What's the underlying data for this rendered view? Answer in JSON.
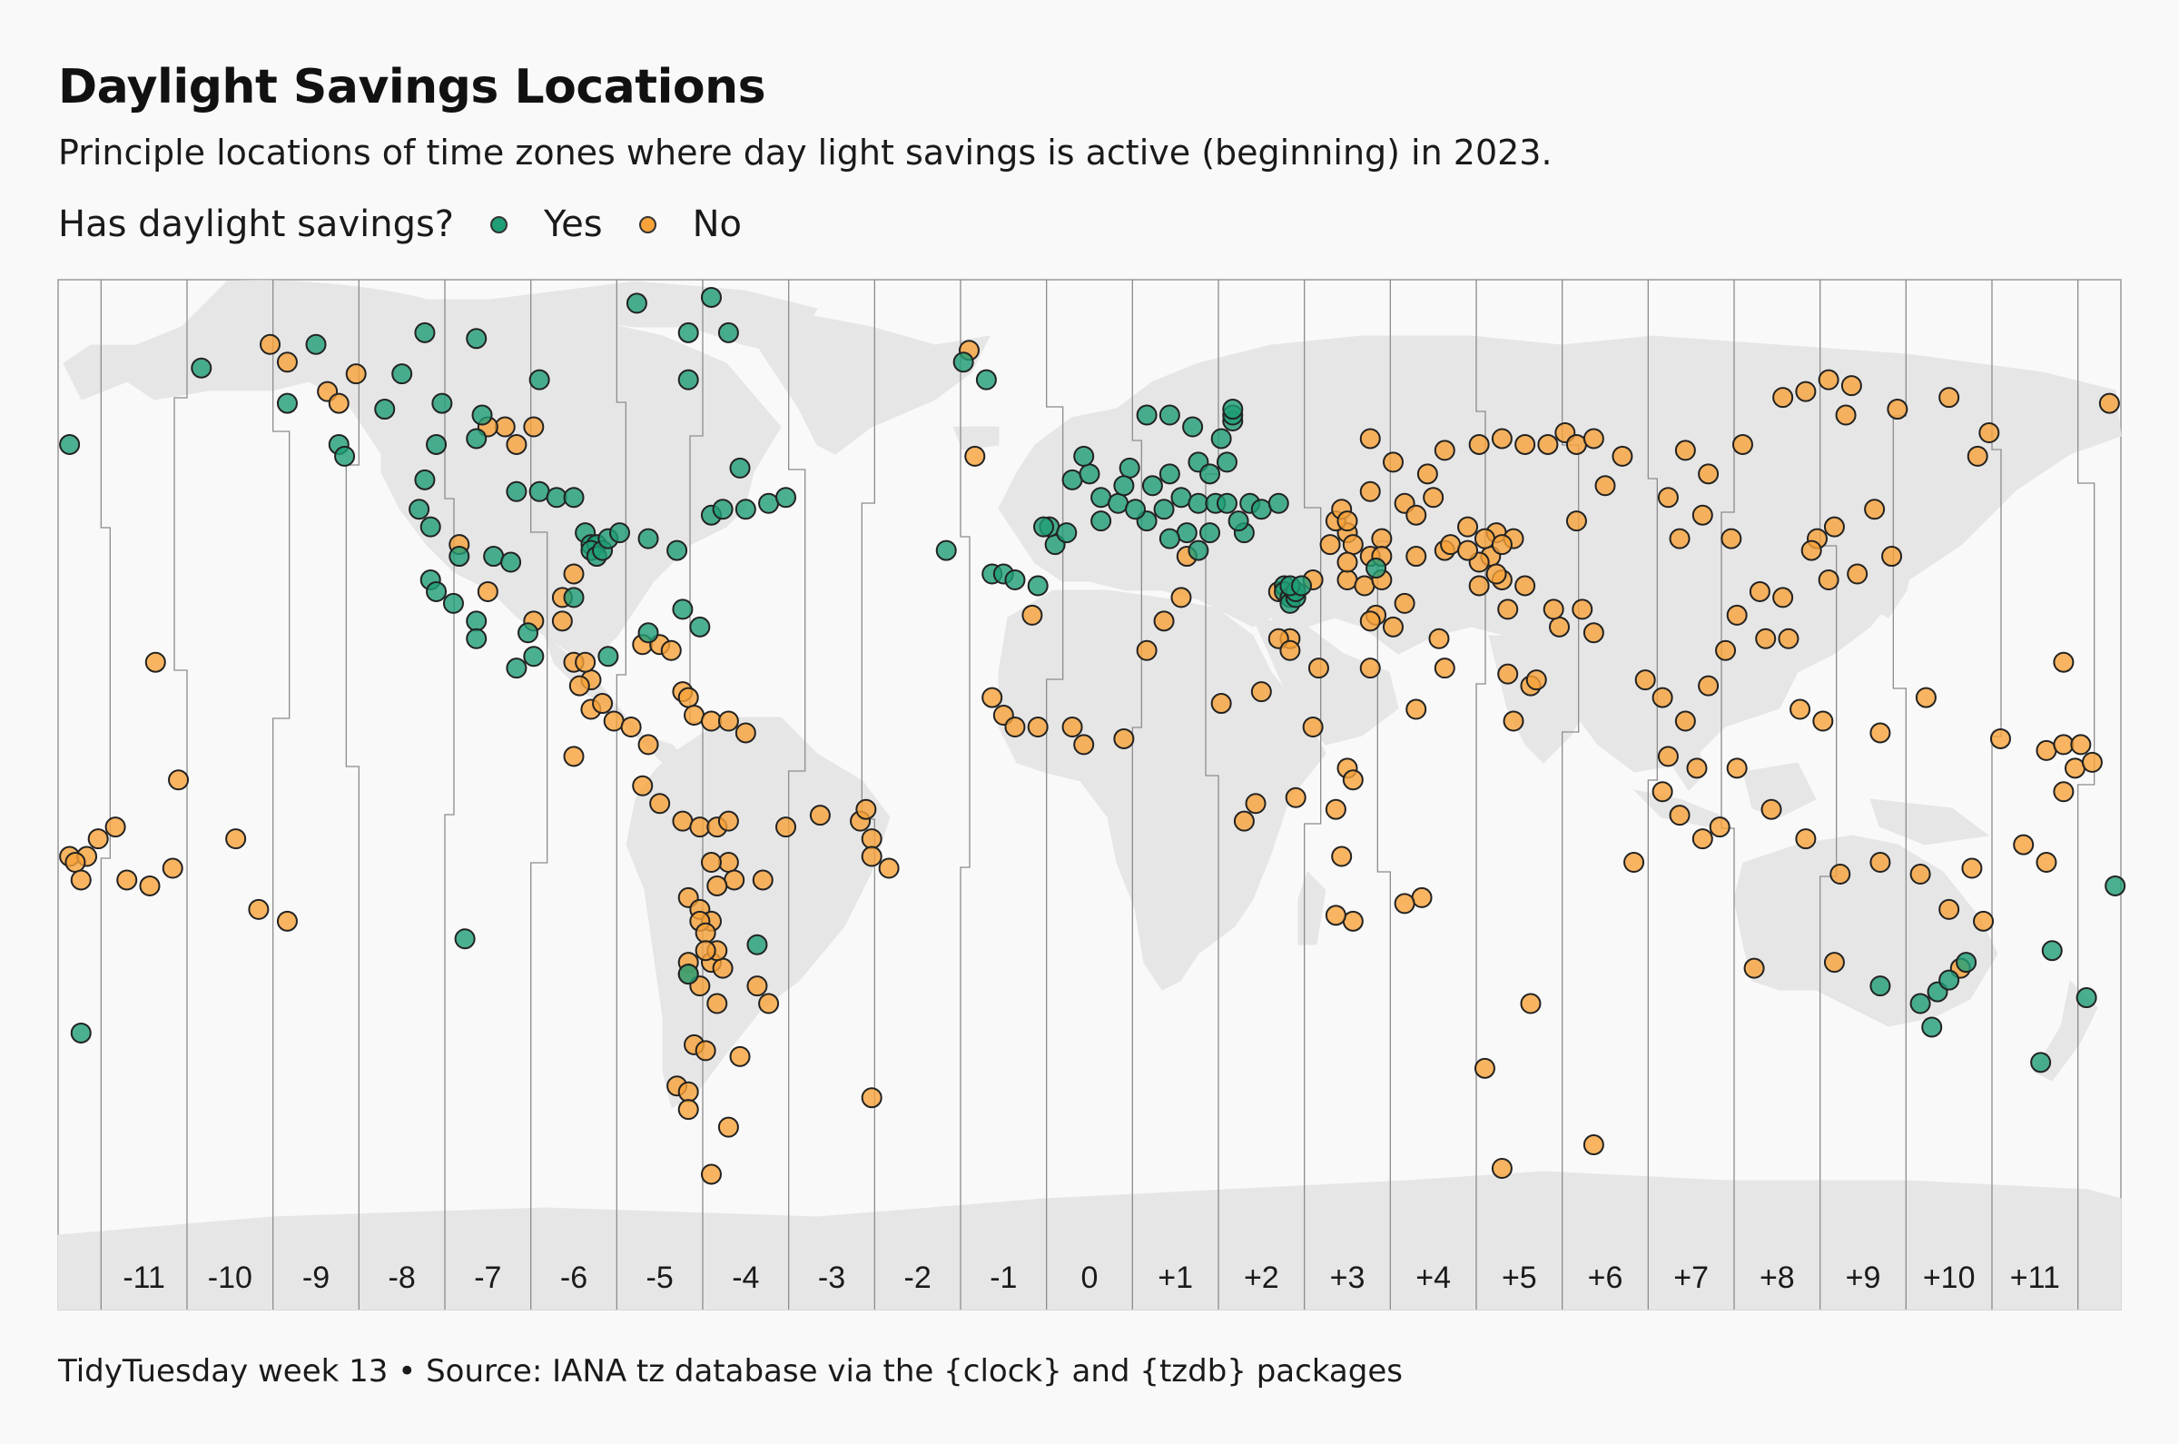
{
  "title": "Daylight Savings Locations",
  "subtitle": "Principle locations of time zones where day light savings is active (beginning) in 2023.",
  "legend": {
    "title": "Has daylight savings?",
    "entries": [
      {
        "label": "Yes",
        "color": "#1f9e77"
      },
      {
        "label": "No",
        "color": "#f7a33a"
      }
    ]
  },
  "zone_labels": [
    "-11",
    "-10",
    "-9",
    "-8",
    "-7",
    "-6",
    "-5",
    "-4",
    "-3",
    "-2",
    "-1",
    "0",
    "+1",
    "+2",
    "+3",
    "+4",
    "+5",
    "+6",
    "+7",
    "+8",
    "+9",
    "+10",
    "+11"
  ],
  "caption": "TidyTuesday week 13  •  Source:  IANA tz database via the {clock} and {tzdb} packages",
  "colors": {
    "yes": "#1f9e77",
    "no": "#f7a33a",
    "land": "#e6e6e6",
    "panel": "#f9f9f9"
  },
  "points_yes": [
    [
      -178,
      57
    ],
    [
      -155,
      70
    ],
    [
      -140,
      64
    ],
    [
      -135,
      74
    ],
    [
      -131,
      57
    ],
    [
      -130,
      55
    ],
    [
      -123,
      63
    ],
    [
      -120,
      69
    ],
    [
      -116,
      76
    ],
    [
      -107,
      75
    ],
    [
      -106,
      62
    ],
    [
      -116,
      51
    ],
    [
      -107,
      58
    ],
    [
      -100,
      49
    ],
    [
      -96,
      49
    ],
    [
      -93,
      48
    ],
    [
      -90,
      48
    ],
    [
      -88,
      42
    ],
    [
      -87,
      40
    ],
    [
      -86,
      40
    ],
    [
      -87,
      39
    ],
    [
      -86,
      38
    ],
    [
      -85,
      39
    ],
    [
      -84,
      41
    ],
    [
      -82,
      42
    ],
    [
      -77,
      41
    ],
    [
      -72,
      39
    ],
    [
      -66,
      45
    ],
    [
      -64,
      46
    ],
    [
      -60,
      46
    ],
    [
      -56,
      47
    ],
    [
      -53,
      48
    ],
    [
      -61,
      53
    ],
    [
      -70,
      68
    ],
    [
      -70,
      76
    ],
    [
      -79,
      81
    ],
    [
      -66,
      82
    ],
    [
      -63,
      76
    ],
    [
      -96,
      68
    ],
    [
      -113,
      64
    ],
    [
      -114,
      57
    ],
    [
      -117,
      46
    ],
    [
      -115,
      43
    ],
    [
      -115,
      34
    ],
    [
      -114,
      32
    ],
    [
      -110,
      38
    ],
    [
      -104,
      38
    ],
    [
      -101,
      37
    ],
    [
      -98,
      25
    ],
    [
      -97,
      21
    ],
    [
      -90,
      31
    ],
    [
      -111,
      30
    ],
    [
      -107,
      27
    ],
    [
      -107,
      24
    ],
    [
      -100,
      19
    ],
    [
      -84,
      21
    ],
    [
      -77,
      25
    ],
    [
      -71,
      29
    ],
    [
      -68,
      26
    ],
    [
      -70,
      -33
    ],
    [
      -58,
      -28
    ],
    [
      -109,
      -27
    ],
    [
      -176,
      -43
    ],
    [
      -18,
      68
    ],
    [
      -22,
      71
    ],
    [
      -25,
      39
    ],
    [
      -17,
      35
    ],
    [
      -15,
      35
    ],
    [
      -13,
      34
    ],
    [
      -9,
      33
    ],
    [
      -6,
      40
    ],
    [
      -7,
      43
    ],
    [
      -3,
      51
    ],
    [
      0,
      52
    ],
    [
      -1,
      55
    ],
    [
      2,
      48
    ],
    [
      5,
      47
    ],
    [
      10,
      62
    ],
    [
      14,
      62
    ],
    [
      18,
      60
    ],
    [
      25,
      61
    ],
    [
      25,
      62
    ],
    [
      25,
      63
    ],
    [
      23,
      58
    ],
    [
      7,
      53
    ],
    [
      6,
      50
    ],
    [
      11,
      50
    ],
    [
      14,
      52
    ],
    [
      19,
      54
    ],
    [
      21,
      52
    ],
    [
      24,
      54
    ],
    [
      13,
      46
    ],
    [
      16,
      48
    ],
    [
      19,
      47
    ],
    [
      22,
      47
    ],
    [
      24,
      47
    ],
    [
      28,
      47
    ],
    [
      30,
      46
    ],
    [
      33,
      47
    ],
    [
      27,
      42
    ],
    [
      26,
      44
    ],
    [
      21,
      42
    ],
    [
      17,
      42
    ],
    [
      19,
      39
    ],
    [
      14,
      41
    ],
    [
      10,
      44
    ],
    [
      8,
      46
    ],
    [
      2,
      44
    ],
    [
      -4,
      42
    ],
    [
      -8,
      43
    ],
    [
      34,
      33
    ],
    [
      34,
      32
    ],
    [
      35,
      31
    ],
    [
      35,
      30
    ],
    [
      36,
      31
    ],
    [
      36,
      32
    ],
    [
      35,
      33
    ],
    [
      37,
      33
    ],
    [
      50,
      36
    ],
    [
      148,
      -36
    ],
    [
      153,
      -31
    ],
    [
      150,
      -34
    ],
    [
      145,
      -38
    ],
    [
      138,
      -35
    ],
    [
      147,
      -42
    ],
    [
      174,
      -37
    ],
    [
      168,
      -29
    ],
    [
      166,
      -48
    ],
    [
      179,
      -18
    ]
  ],
  "points_no": [
    [
      -178,
      -13
    ],
    [
      -175,
      -13
    ],
    [
      -177,
      -14
    ],
    [
      -176,
      -17
    ],
    [
      -173,
      -10
    ],
    [
      -170,
      -8
    ],
    [
      -168,
      -17
    ],
    [
      -164,
      -18
    ],
    [
      -160,
      -15
    ],
    [
      -163,
      20
    ],
    [
      -159,
      0
    ],
    [
      -149,
      -10
    ],
    [
      -145,
      -22
    ],
    [
      -140,
      -24
    ],
    [
      -143,
      74
    ],
    [
      -140,
      71
    ],
    [
      -133,
      66
    ],
    [
      -131,
      64
    ],
    [
      -128,
      69
    ],
    [
      -102,
      60
    ],
    [
      -105,
      60
    ],
    [
      -97,
      60
    ],
    [
      -100,
      57
    ],
    [
      -90,
      35
    ],
    [
      -110,
      40
    ],
    [
      -105,
      32
    ],
    [
      -92,
      27
    ],
    [
      -97,
      27
    ],
    [
      -92,
      31
    ],
    [
      -90,
      20
    ],
    [
      -87,
      17
    ],
    [
      -88,
      20
    ],
    [
      -89,
      16
    ],
    [
      -87,
      12
    ],
    [
      -85,
      13
    ],
    [
      -83,
      10
    ],
    [
      -80,
      9
    ],
    [
      -78,
      23
    ],
    [
      -75,
      23
    ],
    [
      -73,
      22
    ],
    [
      -71,
      15
    ],
    [
      -70,
      14
    ],
    [
      -90,
      4
    ],
    [
      -77,
      6
    ],
    [
      -69,
      11
    ],
    [
      -66,
      10
    ],
    [
      -63,
      10
    ],
    [
      -60,
      8
    ],
    [
      -78,
      -1
    ],
    [
      -75,
      -4
    ],
    [
      -71,
      -7
    ],
    [
      -68,
      -8
    ],
    [
      -65,
      -8
    ],
    [
      -63,
      -7
    ],
    [
      -63,
      -14
    ],
    [
      -57,
      -17
    ],
    [
      -53,
      -8
    ],
    [
      -47,
      -6
    ],
    [
      -40,
      -7
    ],
    [
      -38,
      -10
    ],
    [
      -35,
      -15
    ],
    [
      -38,
      -13
    ],
    [
      -39,
      -5
    ],
    [
      -62,
      -17
    ],
    [
      -65,
      -18
    ],
    [
      -66,
      -14
    ],
    [
      -70,
      -20
    ],
    [
      -68,
      -22
    ],
    [
      -66,
      -24
    ],
    [
      -66,
      -31
    ],
    [
      -64,
      -32
    ],
    [
      -65,
      -29
    ],
    [
      -68,
      -24
    ],
    [
      -67,
      -26
    ],
    [
      -67,
      -29
    ],
    [
      -70,
      -31
    ],
    [
      -70,
      -33
    ],
    [
      -68,
      -35
    ],
    [
      -65,
      -38
    ],
    [
      -58,
      -35
    ],
    [
      -56,
      -38
    ],
    [
      -61,
      -47
    ],
    [
      -69,
      -45
    ],
    [
      -67,
      -46
    ],
    [
      -72,
      -52
    ],
    [
      -70,
      -53
    ],
    [
      -70,
      -56
    ],
    [
      -63,
      -59
    ],
    [
      -66,
      -67
    ],
    [
      -38,
      -54
    ],
    [
      -21,
      73
    ],
    [
      -20,
      55
    ],
    [
      -10,
      28
    ],
    [
      -17,
      14
    ],
    [
      -15,
      11
    ],
    [
      -13,
      9
    ],
    [
      -9,
      9
    ],
    [
      -3,
      9
    ],
    [
      -1,
      6
    ],
    [
      6,
      7
    ],
    [
      10,
      22
    ],
    [
      13,
      27
    ],
    [
      16,
      31
    ],
    [
      17,
      38
    ],
    [
      33,
      32
    ],
    [
      35,
      24
    ],
    [
      40,
      19
    ],
    [
      55,
      30
    ],
    [
      50,
      28
    ],
    [
      53,
      26
    ],
    [
      49,
      19
    ],
    [
      61,
      24
    ],
    [
      62,
      19
    ],
    [
      74,
      10
    ],
    [
      77,
      16
    ],
    [
      82,
      26
    ],
    [
      73,
      29
    ],
    [
      81,
      29
    ],
    [
      86,
      29
    ],
    [
      88,
      25
    ],
    [
      73,
      18
    ],
    [
      78,
      17
    ],
    [
      97,
      17
    ],
    [
      100,
      14
    ],
    [
      104,
      10
    ],
    [
      101,
      4
    ],
    [
      106,
      2
    ],
    [
      113,
      2
    ],
    [
      119,
      -5
    ],
    [
      107,
      -10
    ],
    [
      110,
      -8
    ],
    [
      103,
      -6
    ],
    [
      100,
      -2
    ],
    [
      95,
      -14
    ],
    [
      125,
      -10
    ],
    [
      131,
      -16
    ],
    [
      138,
      -14
    ],
    [
      145,
      -16
    ],
    [
      150,
      -22
    ],
    [
      156,
      -24
    ],
    [
      154,
      -15
    ],
    [
      163,
      -11
    ],
    [
      167,
      -14
    ],
    [
      170,
      -2
    ],
    [
      172,
      2
    ],
    [
      167,
      5
    ],
    [
      170,
      6
    ],
    [
      173,
      6
    ],
    [
      175,
      3
    ],
    [
      170,
      20
    ],
    [
      159,
      7
    ],
    [
      146,
      14
    ],
    [
      138,
      8
    ],
    [
      128,
      10
    ],
    [
      124,
      12
    ],
    [
      122,
      24
    ],
    [
      118,
      24
    ],
    [
      121,
      31
    ],
    [
      117,
      32
    ],
    [
      113,
      28
    ],
    [
      111,
      22
    ],
    [
      108,
      16
    ],
    [
      116,
      -32
    ],
    [
      130,
      -31
    ],
    [
      45,
      2
    ],
    [
      44,
      -13
    ],
    [
      58,
      -20
    ],
    [
      55,
      -21
    ],
    [
      46,
      -24
    ],
    [
      43,
      -23
    ],
    [
      69,
      -49
    ],
    [
      77,
      -38
    ],
    [
      88,
      -62
    ],
    [
      72,
      -66
    ],
    [
      152,
      -32
    ],
    [
      27,
      -7
    ],
    [
      29,
      -4
    ],
    [
      30,
      15
    ],
    [
      23,
      13
    ],
    [
      33,
      24
    ],
    [
      39,
      9
    ],
    [
      36,
      -3
    ],
    [
      43,
      -5
    ],
    [
      46,
      0
    ],
    [
      57,
      12
    ],
    [
      45,
      34
    ],
    [
      49,
      38
    ],
    [
      51,
      41
    ],
    [
      55,
      47
    ],
    [
      57,
      45
    ],
    [
      59,
      52
    ],
    [
      53,
      54
    ],
    [
      49,
      58
    ],
    [
      62,
      56
    ],
    [
      68,
      57
    ],
    [
      72,
      58
    ],
    [
      76,
      57
    ],
    [
      83,
      59
    ],
    [
      60,
      48
    ],
    [
      66,
      43
    ],
    [
      71,
      42
    ],
    [
      74,
      41
    ],
    [
      70,
      38
    ],
    [
      68,
      37
    ],
    [
      72,
      34
    ],
    [
      76,
      33
    ],
    [
      68,
      33
    ],
    [
      57,
      38
    ],
    [
      62,
      39
    ],
    [
      80,
      57
    ],
    [
      85,
      57
    ],
    [
      88,
      58
    ],
    [
      93,
      55
    ],
    [
      104,
      56
    ],
    [
      114,
      57
    ],
    [
      108,
      52
    ],
    [
      125,
      66
    ],
    [
      121,
      65
    ],
    [
      133,
      67
    ],
    [
      129,
      68
    ],
    [
      141,
      63
    ],
    [
      132,
      62
    ],
    [
      150,
      65
    ],
    [
      155,
      55
    ],
    [
      157,
      59
    ],
    [
      178,
      64
    ],
    [
      85,
      44
    ],
    [
      90,
      50
    ],
    [
      101,
      48
    ],
    [
      103,
      41
    ],
    [
      112,
      41
    ],
    [
      137,
      46
    ],
    [
      130,
      43
    ],
    [
      127,
      41
    ],
    [
      126,
      39
    ],
    [
      129,
      34
    ],
    [
      134,
      35
    ],
    [
      140,
      38
    ],
    [
      107,
      45
    ],
    [
      45,
      42
    ],
    [
      42,
      40
    ],
    [
      43,
      44
    ],
    [
      44,
      46
    ],
    [
      49,
      49
    ],
    [
      51,
      38
    ],
    [
      46,
      40
    ],
    [
      45,
      37
    ],
    [
      48,
      33
    ],
    [
      51,
      34
    ],
    [
      49,
      27
    ],
    [
      63,
      40
    ],
    [
      66,
      39
    ],
    [
      69,
      41
    ],
    [
      72,
      40
    ],
    [
      45,
      44
    ],
    [
      39,
      34
    ],
    [
      35,
      22
    ],
    [
      71,
      35
    ]
  ]
}
